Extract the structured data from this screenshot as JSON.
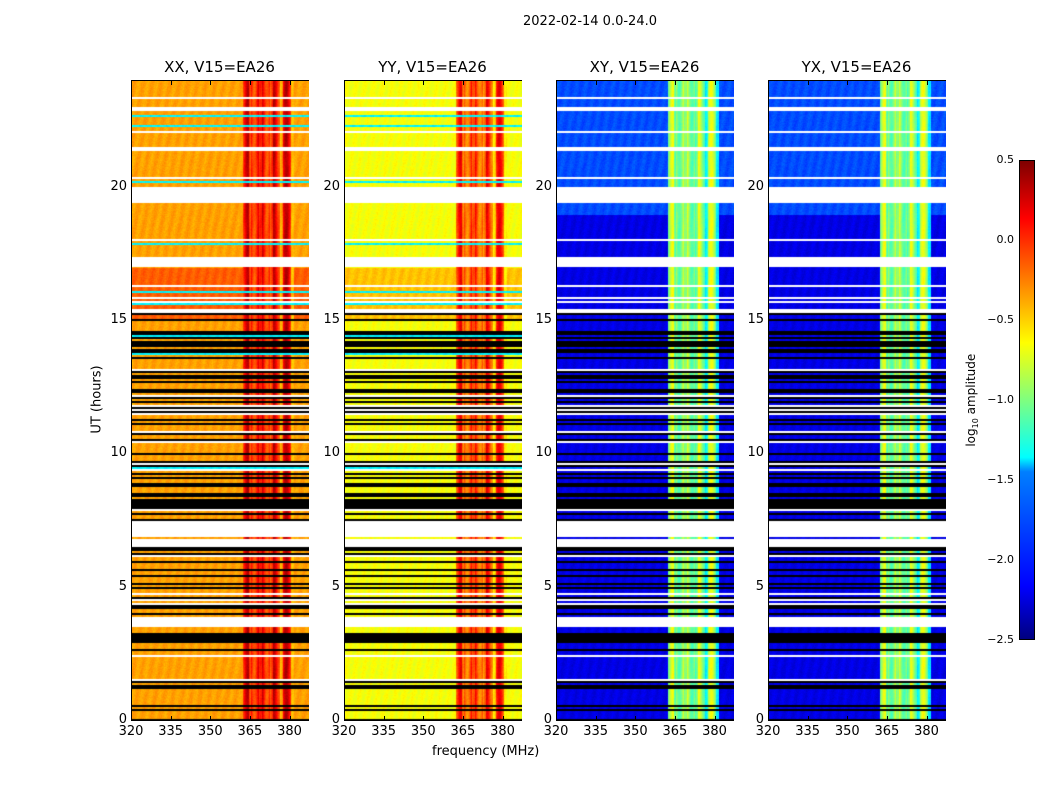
{
  "chart_data": {
    "type": "heatmap",
    "title": "2022-02-14 0.0-24.0",
    "xlabel": "frequency (MHz)",
    "ylabel": "UT (hours)",
    "xlim": [
      320,
      387
    ],
    "ylim": [
      0,
      24
    ],
    "xticks": [
      320,
      335,
      350,
      365,
      380
    ],
    "yticks": [
      0,
      5,
      10,
      15,
      20
    ],
    "panels": [
      {
        "title": "XX, V15=EA26",
        "base_level": -0.35,
        "rfi_level": 0.1
      },
      {
        "title": "YY, V15=EA26",
        "base_level": -0.65,
        "rfi_level": -0.05
      },
      {
        "title": "XY, V15=EA26",
        "base_level": -2.2,
        "rfi_level": -0.9
      },
      {
        "title": "YX, V15=EA26",
        "base_level": -2.2,
        "rfi_level": -0.9
      }
    ],
    "rfi_band_mhz": [
      362,
      381
    ],
    "flagged_hours": [
      [
        3.6,
        3.8
      ],
      [
        6.5,
        6.8
      ],
      [
        6.9,
        7.5
      ],
      [
        17.0,
        17.4
      ],
      [
        19.4,
        20.0
      ],
      [
        22.9,
        23.0
      ]
    ],
    "colorbar": {
      "label": "log10 amplitude",
      "label_main": "log",
      "label_sub": "10",
      "label_rest": " amplitude",
      "range": [
        -2.5,
        0.5
      ],
      "ticks": [
        "0.5",
        "0.0",
        "−0.5",
        "−1.0",
        "−1.5",
        "−2.0",
        "−2.5"
      ],
      "colormap": "jet"
    }
  }
}
